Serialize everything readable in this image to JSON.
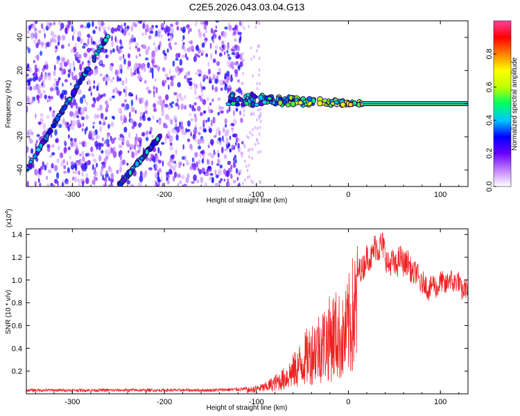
{
  "chart_data": [
    {
      "type": "heatmap",
      "title": "C2E5.2026.043.03.04.G13",
      "xlabel": "Height of straight line (km)",
      "ylabel": "Frequency (Hz)",
      "xlim": [
        -350,
        130
      ],
      "ylim": [
        -50,
        50
      ],
      "xticks": [
        -300,
        -200,
        -100,
        0,
        100
      ],
      "yticks": [
        -40,
        -20,
        0,
        20,
        40
      ],
      "colorbar": {
        "label": "Normalized spectral amplitude",
        "range": [
          0,
          1
        ],
        "ticks": [
          0.0,
          0.2,
          0.4,
          0.6,
          0.8
        ],
        "colors": [
          "#ffffff",
          "#c080ff",
          "#6a00ff",
          "#0000ff",
          "#00c8ff",
          "#00ff60",
          "#c0ff00",
          "#ffff00",
          "#ff8000",
          "#ff0000",
          "#ff40a0"
        ]
      },
      "features": [
        {
          "name": "meteor head echo streak",
          "x": [
            -350,
            -260
          ],
          "y": [
            -40,
            42
          ]
        },
        {
          "name": "secondary streak",
          "x": [
            -250,
            -205
          ],
          "y": [
            -50,
            -20
          ]
        },
        {
          "name": "transition band",
          "x": [
            -130,
            15
          ],
          "y": [
            3,
            0
          ]
        },
        {
          "name": "steady line",
          "x": [
            15,
            130
          ],
          "y": [
            0,
            0
          ]
        }
      ]
    },
    {
      "type": "line",
      "title": "",
      "xlabel": "Height of straight line (km)",
      "ylabel": "SNR (10 * v/v)",
      "ylabel_scale": "(x10",
      "ylabel_scale_exp": "4",
      "ylabel_scale_close": ")",
      "xlim": [
        -350,
        130
      ],
      "ylim": [
        0,
        1.45
      ],
      "xticks": [
        -300,
        -200,
        -100,
        0,
        100
      ],
      "yticks": [
        0.2,
        0.4,
        0.6,
        0.8,
        1.0,
        1.2,
        1.4
      ],
      "series": [
        {
          "name": "SNR",
          "color": "#ee2222",
          "x": [
            -350,
            -300,
            -250,
            -200,
            -150,
            -110,
            -90,
            -70,
            -55,
            -45,
            -35,
            -25,
            -15,
            -5,
            5,
            15,
            25,
            35,
            45,
            60,
            75,
            85,
            100,
            115,
            130
          ],
          "y": [
            0.03,
            0.03,
            0.03,
            0.03,
            0.03,
            0.04,
            0.08,
            0.18,
            0.32,
            0.45,
            0.55,
            0.62,
            0.72,
            0.65,
            0.95,
            1.15,
            1.25,
            1.35,
            1.15,
            1.2,
            1.05,
            0.95,
            0.98,
            1.02,
            0.9
          ]
        }
      ]
    }
  ]
}
